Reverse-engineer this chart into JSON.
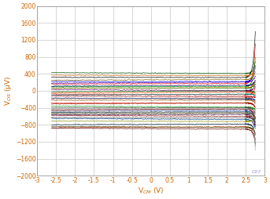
{
  "xlabel": "V$_{CM}$ (V)",
  "ylabel": "V$_{OS}$ (μV)",
  "xlim": [
    -3,
    3
  ],
  "ylim": [
    -2000,
    2000
  ],
  "xticks": [
    -3,
    -2.5,
    -2,
    -1.5,
    -1,
    -0.5,
    0,
    0.5,
    1,
    1.5,
    2,
    2.5,
    3
  ],
  "yticks": [
    -2000,
    -1600,
    -1200,
    -800,
    -400,
    0,
    400,
    800,
    1200,
    1600,
    2000
  ],
  "grid_color": "#c8c8c8",
  "background_color": "#ffffff",
  "watermark": "C07",
  "label_color": "#cc6600",
  "tick_color": "#cc6600",
  "watermark_color": "#7777cc",
  "x_start": -2.62,
  "x_flat_end": 2.48,
  "x_curve_end": 2.75,
  "num_lines": 40,
  "line_colors": [
    "#000000",
    "#ff0000",
    "#00aa00",
    "#0000ff",
    "#aa0000",
    "#884400",
    "#008800",
    "#000088",
    "#cc0000",
    "#ff6600",
    "#006600",
    "#4400aa",
    "#666600",
    "#880000",
    "#004488",
    "#888800",
    "#aa4400",
    "#ff0000",
    "#008888",
    "#660066",
    "#444444",
    "#cc4400",
    "#003366",
    "#440044",
    "#cc6600",
    "#005500",
    "#000066",
    "#886600",
    "#aa2200",
    "#002244",
    "#660000",
    "#444400",
    "#ff4400",
    "#0044aa",
    "#228822",
    "#882200",
    "#aaaaaa",
    "#888888",
    "#666666",
    "#555555"
  ],
  "flat_values": [
    320,
    160,
    100,
    220,
    -120,
    -220,
    -360,
    -460,
    -80,
    60,
    -20,
    180,
    -520,
    -580,
    -650,
    -710,
    -180,
    -290,
    -100,
    30,
    -400,
    -450,
    -510,
    -560,
    370,
    430,
    110,
    250,
    -870,
    -800,
    -880,
    -840,
    -50,
    -170,
    70,
    -310,
    -430,
    -490,
    -550,
    -630
  ],
  "curve_end_values": [
    1400,
    1100,
    800,
    600,
    -150,
    -300,
    -450,
    -650,
    100,
    250,
    -50,
    350,
    -700,
    -800,
    -900,
    -600,
    -250,
    -400,
    -120,
    150,
    -550,
    -650,
    -750,
    -850,
    550,
    700,
    250,
    450,
    -1150,
    -1050,
    -1250,
    -1000,
    -80,
    -220,
    200,
    -400,
    -1400,
    -1300,
    -500,
    -750
  ]
}
